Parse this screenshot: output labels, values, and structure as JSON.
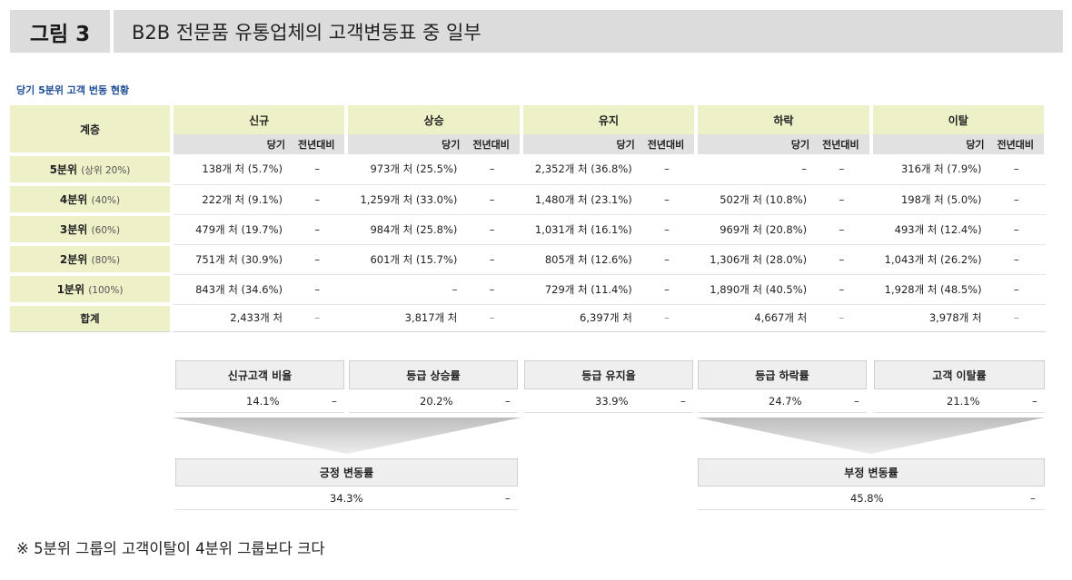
{
  "figure": {
    "number": "그림 3",
    "title": "B2B 전문품 유통업체의 고객변동표 중 일부"
  },
  "table_title": "당기 5분위 고객 번동 현황",
  "main_table": {
    "corner_label": "계층",
    "groups": [
      "신규",
      "상승",
      "유지",
      "하락",
      "이탈"
    ],
    "sub_current": "당기",
    "sub_change": "전년대비",
    "rows": [
      {
        "label": "5분위",
        "pct": "(상위 20%)",
        "cells": [
          {
            "v": "138개 처 (5.7%)",
            "d": "–"
          },
          {
            "v": "973개 처 (25.5%)",
            "d": "–"
          },
          {
            "v": "2,352개 처 (36.8%)",
            "d": "–"
          },
          {
            "v": "–",
            "d": "–"
          },
          {
            "v": "316개 처 (7.9%)",
            "d": "–"
          }
        ]
      },
      {
        "label": "4분위",
        "pct": "(40%)",
        "cells": [
          {
            "v": "222개 처 (9.1%)",
            "d": "–"
          },
          {
            "v": "1,259개 처 (33.0%)",
            "d": "–"
          },
          {
            "v": "1,480개 처 (23.1%)",
            "d": "–"
          },
          {
            "v": "502개 처 (10.8%)",
            "d": "–"
          },
          {
            "v": "198개 처 (5.0%)",
            "d": "–"
          }
        ]
      },
      {
        "label": "3분위",
        "pct": "(60%)",
        "cells": [
          {
            "v": "479개 처 (19.7%)",
            "d": "–"
          },
          {
            "v": "984개 처 (25.8%)",
            "d": "–"
          },
          {
            "v": "1,031개 처 (16.1%)",
            "d": "–"
          },
          {
            "v": "969개 처 (20.8%)",
            "d": "–"
          },
          {
            "v": "493개 처 (12.4%)",
            "d": "–"
          }
        ]
      },
      {
        "label": "2분위",
        "pct": "(80%)",
        "cells": [
          {
            "v": "751개 처 (30.9%)",
            "d": "–"
          },
          {
            "v": "601개 처 (15.7%)",
            "d": "–"
          },
          {
            "v": "805개 처 (12.6%)",
            "d": "–"
          },
          {
            "v": "1,306개 처 (28.0%)",
            "d": "–"
          },
          {
            "v": "1,043개 처 (26.2%)",
            "d": "–"
          }
        ]
      },
      {
        "label": "1분위",
        "pct": "(100%)",
        "cells": [
          {
            "v": "843개 처 (34.6%)",
            "d": "–"
          },
          {
            "v": "–",
            "d": "–"
          },
          {
            "v": "729개 처 (11.4%)",
            "d": "–"
          },
          {
            "v": "1,890개 처 (40.5%)",
            "d": "–"
          },
          {
            "v": "1,928개 처 (48.5%)",
            "d": "–"
          }
        ]
      }
    ],
    "total": {
      "label": "합계",
      "cells": [
        {
          "v": "2,433개 처",
          "d": "–"
        },
        {
          "v": "3,817개 처",
          "d": "–"
        },
        {
          "v": "6,397개 처",
          "d": "–"
        },
        {
          "v": "4,667개 처",
          "d": "–"
        },
        {
          "v": "3,978개 처",
          "d": "–"
        }
      ]
    }
  },
  "ratios": [
    {
      "label": "신규고객 비율",
      "value": "14.1%",
      "change": "–"
    },
    {
      "label": "등급 상승률",
      "value": "20.2%",
      "change": "–"
    },
    {
      "label": "등급 유지율",
      "value": "33.9%",
      "change": "–"
    },
    {
      "label": "등급 하락률",
      "value": "24.7%",
      "change": "–"
    },
    {
      "label": "고객 이탈률",
      "value": "21.1%",
      "change": "–"
    }
  ],
  "summary": {
    "positive": {
      "label": "긍정 변동률",
      "value": "34.3%",
      "change": "–"
    },
    "negative": {
      "label": "부정 변동률",
      "value": "45.8%",
      "change": "–"
    }
  },
  "note": "※ 5분위 그룹의 고객이탈이 4분위 그룹보다 크다",
  "colors": {
    "header_bg": "#dcdcdc",
    "label_bg": "#eef0c8",
    "subheader_bg": "#e1e1e1",
    "box_bg": "#efefef",
    "title_blue": "#1f4e96"
  }
}
